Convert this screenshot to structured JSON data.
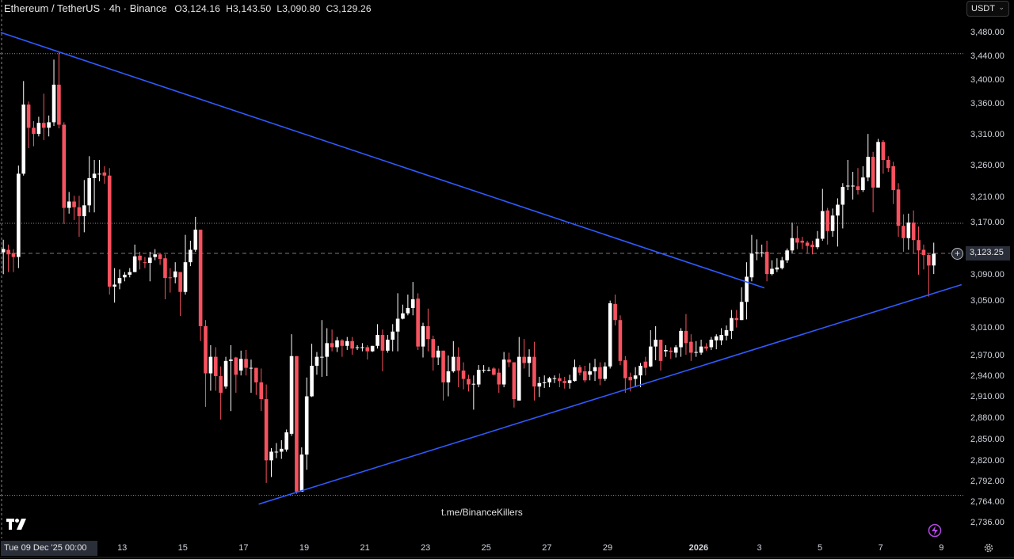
{
  "header": {
    "symbol": "Ethereum / TetherUS · 4h · Binance",
    "open": "O3,124.16",
    "high": "H3,143.50",
    "low": "L3,090.80",
    "close": "C3,129.26"
  },
  "currency_selector": {
    "value": "USDT"
  },
  "crosshair": {
    "time_label": "Tue 09 Dec '25  00:00",
    "price_label": "3,123.25"
  },
  "watermark": "t.me/BinanceKillers",
  "icons": {
    "logo": "tradingview-logo-icon",
    "bolt": "lightning-icon",
    "settings": "gear-icon",
    "add": "plus-circle-icon"
  },
  "colors": {
    "background": "#000000",
    "up": "#ffffff",
    "down": "#f7525f",
    "trendline": "#2f5bff",
    "level": "#8a8a8a"
  },
  "chart_data": {
    "type": "candlestick",
    "timeframe": "4h",
    "start": "2025-12-09T00:00",
    "y_scale": "log",
    "ylim": [
      2720,
      3500
    ],
    "price_ticks": [
      "3,480.00",
      "3,440.00",
      "3,400.00",
      "3,360.00",
      "3,310.00",
      "3,260.00",
      "3,210.00",
      "3,170.00",
      "3,090.00",
      "3,050.00",
      "3,010.00",
      "2,970.00",
      "2,940.00",
      "2,910.00",
      "2,880.00",
      "2,850.00",
      "2,820.00",
      "2,792.00",
      "2,764.00",
      "2,736.00"
    ],
    "x_ticks": [
      {
        "label": "13",
        "date": "2025-12-13"
      },
      {
        "label": "15",
        "date": "2025-12-15"
      },
      {
        "label": "17",
        "date": "2025-12-17"
      },
      {
        "label": "19",
        "date": "2025-12-19"
      },
      {
        "label": "21",
        "date": "2025-12-21"
      },
      {
        "label": "23",
        "date": "2025-12-23"
      },
      {
        "label": "25",
        "date": "2025-12-25"
      },
      {
        "label": "27",
        "date": "2025-12-27"
      },
      {
        "label": "29",
        "date": "2025-12-29"
      },
      {
        "label": "2026",
        "date": "2026-01-01",
        "bold": true
      },
      {
        "label": "3",
        "date": "2026-01-03"
      },
      {
        "label": "5",
        "date": "2026-01-05"
      },
      {
        "label": "7",
        "date": "2026-01-07"
      },
      {
        "label": "9",
        "date": "2026-01-09"
      }
    ],
    "horizontal_levels": [
      3444,
      3169,
      2773
    ],
    "trendlines": [
      {
        "from": {
          "time": "2025-12-09T00:00",
          "price": 3480
        },
        "to": {
          "time": "2026-01-03T04:00",
          "price": 3070
        }
      },
      {
        "from": {
          "time": "2025-12-17T12:00",
          "price": 2761
        },
        "to": {
          "time": "2026-01-09T16:00",
          "price": 3075
        }
      }
    ],
    "candles_ohlc": [
      [
        3124.16,
        3143.5,
        3090.8,
        3129.26
      ],
      [
        3128,
        3136,
        3094,
        3121
      ],
      [
        3123,
        3129,
        3094,
        3117
      ],
      [
        3117,
        3260,
        3100,
        3247
      ],
      [
        3247,
        3398,
        3244,
        3359
      ],
      [
        3359,
        3364,
        3288,
        3321
      ],
      [
        3321,
        3332,
        3291,
        3311
      ],
      [
        3311,
        3339,
        3307,
        3329
      ],
      [
        3329,
        3377,
        3301,
        3321
      ],
      [
        3321,
        3341,
        3307,
        3330
      ],
      [
        3330,
        3434,
        3324,
        3392
      ],
      [
        3392,
        3446,
        3320,
        3326
      ],
      [
        3326,
        3330,
        3168,
        3193
      ],
      [
        3193,
        3218,
        3184,
        3203
      ],
      [
        3203,
        3212,
        3174,
        3194
      ],
      [
        3194,
        3212,
        3148,
        3180
      ],
      [
        3180,
        3237,
        3155,
        3197
      ],
      [
        3197,
        3275,
        3186,
        3240
      ],
      [
        3240,
        3269,
        3186,
        3247
      ],
      [
        3247,
        3269,
        3235,
        3247
      ],
      [
        3249,
        3259,
        3231,
        3244
      ],
      [
        3244,
        3256,
        3060,
        3072
      ],
      [
        3072,
        3100,
        3048,
        3075
      ],
      [
        3077,
        3098,
        3068,
        3085
      ],
      [
        3086,
        3094,
        3080,
        3090
      ],
      [
        3090,
        3100,
        3086,
        3094
      ],
      [
        3094,
        3136,
        3094,
        3118
      ],
      [
        3119,
        3125,
        3098,
        3112
      ],
      [
        3109,
        3117,
        3100,
        3108
      ],
      [
        3108,
        3125,
        3080,
        3116
      ],
      [
        3117,
        3129,
        3112,
        3121
      ],
      [
        3121,
        3123,
        3105,
        3114
      ],
      [
        3115,
        3121,
        3053,
        3085
      ],
      [
        3086,
        3100,
        3063,
        3085
      ],
      [
        3086,
        3109,
        3077,
        3095
      ],
      [
        3094,
        3094,
        3028,
        3064
      ],
      [
        3064,
        3151,
        3060,
        3109
      ],
      [
        3109,
        3142,
        3103,
        3128
      ],
      [
        3128,
        3179,
        3125,
        3159
      ],
      [
        3159,
        3159,
        2991,
        3013
      ],
      [
        3013,
        3022,
        2896,
        2944
      ],
      [
        2944,
        2985,
        2919,
        2968
      ],
      [
        2968,
        2982,
        2919,
        2940
      ],
      [
        2940,
        2954,
        2878,
        2916
      ],
      [
        2925,
        2968,
        2922,
        2962
      ],
      [
        2962,
        2985,
        2890,
        2964
      ],
      [
        2967,
        2968,
        2916,
        2942
      ],
      [
        2948,
        2977,
        2941,
        2965
      ],
      [
        2965,
        2978,
        2941,
        2952
      ],
      [
        2952,
        2964,
        2916,
        2952
      ],
      [
        2952,
        2952,
        2913,
        2931
      ],
      [
        2931,
        2951,
        2890,
        2907
      ],
      [
        2907,
        2928,
        2790,
        2821
      ],
      [
        2821,
        2838,
        2798,
        2833
      ],
      [
        2833,
        2845,
        2824,
        2833
      ],
      [
        2833,
        2849,
        2823,
        2837
      ],
      [
        2836,
        2864,
        2833,
        2860
      ],
      [
        2858,
        3001,
        2855,
        2969
      ],
      [
        2969,
        2969,
        2775,
        2778
      ],
      [
        2778,
        2839,
        2778,
        2829
      ],
      [
        2829,
        2938,
        2808,
        2911
      ],
      [
        2911,
        2987,
        2910,
        2955
      ],
      [
        2955,
        2975,
        2942,
        2968
      ],
      [
        2968,
        3022,
        2939,
        2968
      ],
      [
        2968,
        3010,
        2940,
        2988
      ],
      [
        2988,
        3008,
        2976,
        2982
      ],
      [
        2982,
        2997,
        2975,
        2992
      ],
      [
        2992,
        2994,
        2968,
        2984
      ],
      [
        2984,
        2997,
        2978,
        2991
      ],
      [
        2991,
        2997,
        2971,
        2980
      ],
      [
        2982,
        2985,
        2978,
        2982
      ],
      [
        2982,
        2988,
        2976,
        2982
      ],
      [
        2982,
        2985,
        2964,
        2976
      ],
      [
        2976,
        2984,
        2975,
        2984
      ],
      [
        2984,
        3016,
        2980,
        3000
      ],
      [
        3000,
        3008,
        2947,
        2977
      ],
      [
        2977,
        3000,
        2974,
        2993
      ],
      [
        2993,
        3016,
        2976,
        3005
      ],
      [
        3005,
        3062,
        2976,
        3024
      ],
      [
        3024,
        3045,
        3023,
        3032
      ],
      [
        3032,
        3060,
        3029,
        3040
      ],
      [
        3040,
        3079,
        3029,
        3053
      ],
      [
        3054,
        3062,
        2978,
        2983
      ],
      [
        2983,
        3018,
        2967,
        3013
      ],
      [
        3013,
        3039,
        2976,
        2994
      ],
      [
        2994,
        2999,
        2948,
        2967
      ],
      [
        2967,
        2984,
        2956,
        2977
      ],
      [
        2977,
        2977,
        2905,
        2931
      ],
      [
        2931,
        2970,
        2911,
        2947
      ],
      [
        2947,
        2991,
        2945,
        2968
      ],
      [
        2968,
        2982,
        2924,
        2948
      ],
      [
        2948,
        2960,
        2921,
        2936
      ],
      [
        2936,
        2942,
        2918,
        2928
      ],
      [
        2929,
        2941,
        2892,
        2929
      ],
      [
        2928,
        2956,
        2924,
        2949
      ],
      [
        2949,
        2956,
        2945,
        2949
      ],
      [
        2949,
        2953,
        2947,
        2949
      ],
      [
        2951,
        2953,
        2941,
        2942
      ],
      [
        2945,
        2951,
        2916,
        2928
      ],
      [
        2928,
        2975,
        2924,
        2964
      ],
      [
        2964,
        2974,
        2953,
        2960
      ],
      [
        2960,
        2960,
        2895,
        2907
      ],
      [
        2905,
        2997,
        2905,
        2968
      ],
      [
        2968,
        2994,
        2951,
        2959
      ],
      [
        2959,
        2979,
        2939,
        2968
      ],
      [
        2968,
        2990,
        2905,
        2925
      ],
      [
        2925,
        2939,
        2910,
        2930
      ],
      [
        2930,
        2941,
        2923,
        2931
      ],
      [
        2931,
        2939,
        2924,
        2937
      ],
      [
        2937,
        2941,
        2930,
        2937
      ],
      [
        2937,
        2944,
        2924,
        2933
      ],
      [
        2933,
        2939,
        2922,
        2930
      ],
      [
        2930,
        2942,
        2922,
        2934
      ],
      [
        2933,
        2964,
        2932,
        2953
      ],
      [
        2953,
        2956,
        2941,
        2945
      ],
      [
        2947,
        2955,
        2931,
        2934
      ],
      [
        2942,
        2959,
        2934,
        2947
      ],
      [
        2947,
        2965,
        2933,
        2953
      ],
      [
        2953,
        2960,
        2927,
        2936
      ],
      [
        2936,
        2960,
        2933,
        2954
      ],
      [
        2954,
        3051,
        2951,
        3047
      ],
      [
        3046,
        3060,
        3014,
        3022
      ],
      [
        3022,
        3029,
        2956,
        2962
      ],
      [
        2963,
        2969,
        2916,
        2937
      ],
      [
        2939,
        2945,
        2918,
        2934
      ],
      [
        2936,
        2953,
        2925,
        2941
      ],
      [
        2941,
        2959,
        2924,
        2955
      ],
      [
        2961,
        2968,
        2941,
        2952
      ],
      [
        2954,
        3007,
        2953,
        2983
      ],
      [
        2983,
        3013,
        2963,
        2993
      ],
      [
        2993,
        2993,
        2948,
        2962
      ],
      [
        2976,
        2985,
        2968,
        2978
      ],
      [
        2977,
        2982,
        2965,
        2975
      ],
      [
        2974,
        2985,
        2967,
        2982
      ],
      [
        2982,
        3010,
        2968,
        3006
      ],
      [
        3006,
        3031,
        2971,
        2988
      ],
      [
        2990,
        3001,
        2962,
        2974
      ],
      [
        2975,
        2991,
        2968,
        2975
      ],
      [
        2974,
        2993,
        2971,
        2983
      ],
      [
        2983,
        2988,
        2977,
        2980
      ],
      [
        2982,
        2997,
        2978,
        2993
      ],
      [
        2992,
        3001,
        2979,
        2998
      ],
      [
        2992,
        3010,
        2985,
        3000
      ],
      [
        2999,
        3014,
        2992,
        3007
      ],
      [
        3006,
        3037,
        2994,
        3025
      ],
      [
        3025,
        3037,
        3011,
        3022
      ],
      [
        3022,
        3071,
        3022,
        3049
      ],
      [
        3049,
        3109,
        3023,
        3087
      ],
      [
        3086,
        3151,
        3080,
        3122
      ],
      [
        3124,
        3144,
        3112,
        3124
      ],
      [
        3124,
        3136,
        3117,
        3124
      ],
      [
        3125,
        3142,
        3080,
        3091
      ],
      [
        3091,
        3112,
        3089,
        3099
      ],
      [
        3098,
        3115,
        3094,
        3101
      ],
      [
        3100,
        3117,
        3098,
        3112
      ],
      [
        3112,
        3130,
        3108,
        3127
      ],
      [
        3127,
        3170,
        3123,
        3146
      ],
      [
        3146,
        3165,
        3129,
        3139
      ],
      [
        3142,
        3148,
        3129,
        3139
      ],
      [
        3139,
        3142,
        3123,
        3134
      ],
      [
        3136,
        3142,
        3121,
        3132
      ],
      [
        3132,
        3157,
        3129,
        3145
      ],
      [
        3145,
        3223,
        3142,
        3188
      ],
      [
        3189,
        3193,
        3136,
        3157
      ],
      [
        3157,
        3192,
        3148,
        3181
      ],
      [
        3181,
        3208,
        3133,
        3198
      ],
      [
        3198,
        3232,
        3161,
        3226
      ],
      [
        3227,
        3269,
        3221,
        3228
      ],
      [
        3227,
        3250,
        3206,
        3228
      ],
      [
        3227,
        3256,
        3214,
        3221
      ],
      [
        3221,
        3259,
        3218,
        3241
      ],
      [
        3241,
        3311,
        3235,
        3274
      ],
      [
        3274,
        3282,
        3186,
        3225
      ],
      [
        3225,
        3303,
        3225,
        3298
      ],
      [
        3298,
        3301,
        3247,
        3269
      ],
      [
        3269,
        3275,
        3250,
        3256
      ],
      [
        3259,
        3266,
        3199,
        3221
      ],
      [
        3222,
        3232,
        3148,
        3165
      ],
      [
        3165,
        3183,
        3125,
        3146
      ],
      [
        3146,
        3184,
        3128,
        3170
      ],
      [
        3170,
        3189,
        3123,
        3143
      ],
      [
        3143,
        3164,
        3090,
        3127
      ],
      [
        3128,
        3136,
        3098,
        3120
      ],
      [
        3120,
        3123,
        3057,
        3104
      ],
      [
        3104,
        3139,
        3091,
        3122
      ]
    ]
  }
}
